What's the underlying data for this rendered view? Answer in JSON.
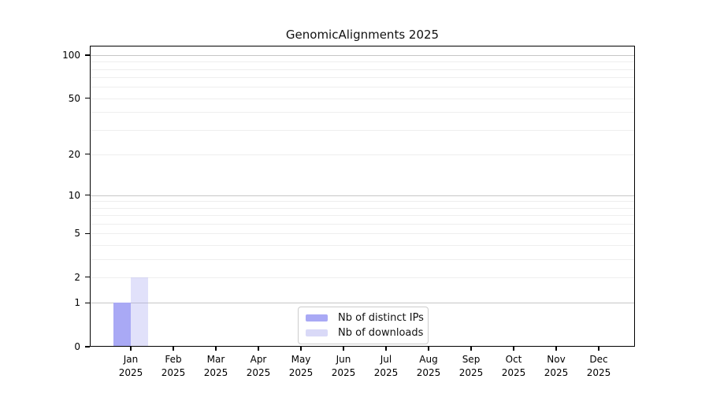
{
  "title": "GenomicAlignments 2025",
  "colors": {
    "distinct_ips_bar": "#a9a9f5",
    "downloads_bar_rgba": "rgba(168,168,240,0.35)",
    "downloads_swatch": "#d9d9f7",
    "grid_major": "#c6c6c6",
    "grid_minor": "#eeeeee",
    "axis": "#000000",
    "legend_border": "#cccccc",
    "background": "#ffffff"
  },
  "legend": {
    "items": [
      {
        "label": "Nb of distinct IPs"
      },
      {
        "label": "Nb of downloads"
      }
    ]
  },
  "chart_data": {
    "type": "bar",
    "title": "GenomicAlignments 2025",
    "x_categories": [
      "Jan",
      "Feb",
      "Mar",
      "Apr",
      "May",
      "Jun",
      "Jul",
      "Aug",
      "Sep",
      "Oct",
      "Nov",
      "Dec"
    ],
    "x_year": "2025",
    "xlabel": "",
    "ylabel": "",
    "y_scale": "log10(1+v)",
    "y_ticks": [
      0,
      1,
      2,
      5,
      10,
      20,
      50,
      100
    ],
    "ylim": [
      0,
      116
    ],
    "grid": "horizontal",
    "grid_major_values": [
      1,
      10,
      100
    ],
    "grid_minor_values": [
      2,
      3,
      4,
      5,
      6,
      7,
      8,
      9,
      20,
      30,
      40,
      50,
      60,
      70,
      80,
      90
    ],
    "legend_position": "bottom-center-inside",
    "series": [
      {
        "name": "Nb of distinct IPs",
        "values": [
          1,
          0,
          0,
          0,
          0,
          0,
          0,
          0,
          0,
          0,
          0,
          0
        ]
      },
      {
        "name": "Nb of downloads",
        "values": [
          2,
          0,
          0,
          0,
          0,
          0,
          0,
          0,
          0,
          0,
          0,
          0
        ]
      }
    ]
  }
}
